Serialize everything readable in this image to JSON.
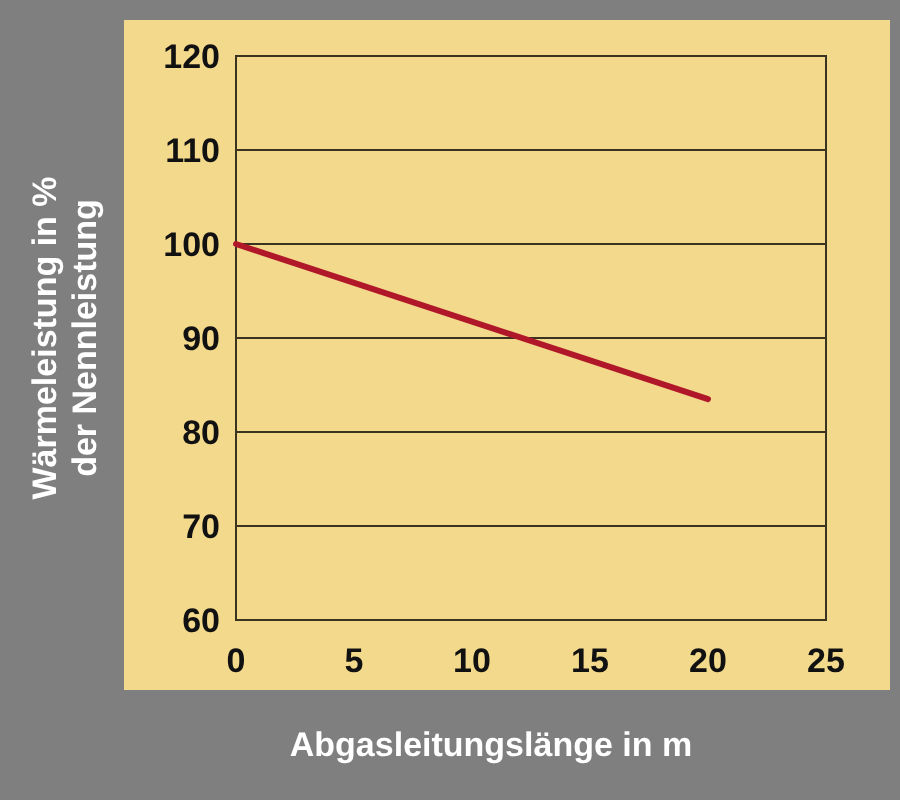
{
  "chart_data": {
    "type": "line",
    "xlabel": "Abgasleitungslänge in m",
    "ylabel": "Wärmeleistung in %\nder Nennleistung",
    "x": [
      0,
      20
    ],
    "series": [
      {
        "color": "#b0182a",
        "values": [
          100,
          83.5
        ]
      }
    ],
    "xlim": [
      0,
      25
    ],
    "xticks": [
      0,
      5,
      10,
      15,
      20,
      25
    ],
    "ylim": [
      60,
      120
    ],
    "yticks": [
      60,
      70,
      80,
      90,
      100,
      110,
      120
    ],
    "grid": "y",
    "marker": "none",
    "line_style": "solid"
  }
}
